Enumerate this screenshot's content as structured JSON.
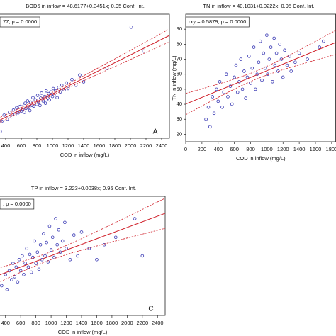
{
  "chart_data": [
    {
      "type": "scatter",
      "title": "BOD5 in inflow = 48.6177+0.3451x; 0.95 Conf. Int.",
      "annotation": "77; p = 0.0000",
      "panel_label": "A",
      "xlabel": "COD in inflow (mg/L)",
      "fit": {
        "intercept": 48.6177,
        "slope": 0.3451
      },
      "xlim": [
        300,
        2500
      ],
      "xticks": [
        400,
        600,
        800,
        1000,
        1200,
        1400,
        1600,
        1800,
        2000,
        2200,
        2400
      ],
      "ylim": [
        0,
        1100
      ],
      "color": "#3a3ab4",
      "line_color": "#d0202a",
      "x": [
        330,
        350,
        380,
        420,
        450,
        480,
        500,
        520,
        540,
        560,
        580,
        600,
        610,
        620,
        640,
        650,
        660,
        680,
        700,
        710,
        720,
        740,
        750,
        760,
        780,
        800,
        810,
        820,
        840,
        850,
        860,
        880,
        900,
        910,
        920,
        940,
        950,
        960,
        980,
        1000,
        1010,
        1020,
        1040,
        1060,
        1080,
        1100,
        1120,
        1150,
        1180,
        1200,
        1250,
        1300,
        1350,
        1400,
        1700,
        2010,
        2170
      ],
      "y": [
        60,
        150,
        205,
        170,
        230,
        190,
        250,
        210,
        270,
        225,
        280,
        240,
        300,
        255,
        230,
        310,
        265,
        330,
        270,
        245,
        320,
        290,
        360,
        285,
        340,
        300,
        380,
        315,
        290,
        355,
        400,
        330,
        370,
        310,
        420,
        355,
        395,
        340,
        410,
        370,
        440,
        385,
        420,
        360,
        450,
        410,
        470,
        430,
        490,
        440,
        520,
        470,
        560,
        500,
        620,
        985,
        773
      ]
    },
    {
      "type": "scatter",
      "title": "TN in inflow = 40.1031+0.0222x; 0.95 Conf. Int.",
      "annotation": "rxy = 0.5879; p = 0.0000",
      "xlabel": "COD in inflow (mg/L)",
      "ylabel": "TN in inflow (mg/L)",
      "fit": {
        "intercept": 40.1031,
        "slope": 0.0222
      },
      "xlim": [
        0,
        1850
      ],
      "xticks": [
        0,
        200,
        400,
        600,
        800,
        1000,
        1200,
        1400,
        1600,
        1800
      ],
      "ylim": [
        15,
        100
      ],
      "yticks": [
        20,
        30,
        40,
        50,
        60,
        70,
        80,
        90
      ],
      "color": "#3a3ab4",
      "line_color": "#d0202a",
      "x": [
        250,
        280,
        300,
        330,
        350,
        380,
        400,
        420,
        450,
        470,
        500,
        520,
        550,
        570,
        600,
        620,
        640,
        660,
        680,
        700,
        720,
        740,
        760,
        780,
        800,
        820,
        840,
        860,
        880,
        900,
        920,
        940,
        960,
        980,
        1000,
        1010,
        1030,
        1050,
        1070,
        1090,
        1100,
        1120,
        1140,
        1160,
        1180,
        1200,
        1220,
        1250,
        1280,
        1300,
        1350,
        1400,
        1500,
        1650,
        1700
      ],
      "y": [
        30,
        38,
        25,
        45,
        34,
        50,
        42,
        55,
        38,
        48,
        60,
        45,
        52,
        40,
        58,
        66,
        48,
        55,
        70,
        50,
        62,
        44,
        58,
        72,
        54,
        64,
        78,
        50,
        60,
        68,
        82,
        56,
        74,
        64,
        86,
        60,
        70,
        78,
        55,
        84,
        66,
        74,
        62,
        80,
        70,
        58,
        76,
        66,
        72,
        62,
        68,
        74,
        70,
        78,
        82
      ]
    },
    {
      "type": "scatter",
      "title": "TP in inflow = 3.223+0.0038x; 0.95 Conf. Int.",
      "annotation": "; p = 0.0000",
      "panel_label": "C",
      "xlabel": "COD in inflow (mg/L)",
      "fit": {
        "intercept": 3.223,
        "slope": 0.0038
      },
      "xlim": [
        300,
        2500
      ],
      "xticks": [
        400,
        600,
        800,
        1000,
        1200,
        1400,
        1600,
        1800,
        2000,
        2200,
        2400
      ],
      "ylim": [
        -1,
        15
      ],
      "color": "#3a3ab4",
      "line_color": "#d0202a",
      "x": [
        350,
        400,
        420,
        450,
        480,
        500,
        520,
        540,
        560,
        580,
        600,
        620,
        640,
        660,
        680,
        700,
        720,
        740,
        760,
        780,
        800,
        820,
        840,
        860,
        880,
        900,
        920,
        940,
        960,
        980,
        1000,
        1020,
        1040,
        1060,
        1080,
        1100,
        1120,
        1150,
        1180,
        1200,
        1250,
        1300,
        1350,
        1400,
        1500,
        1600,
        1700,
        1850,
        2100,
        2200
      ],
      "y": [
        3,
        4.5,
        2.5,
        5,
        3.8,
        6,
        4.2,
        5.5,
        3.5,
        6.5,
        5,
        7,
        4.5,
        6,
        8,
        5.5,
        7.2,
        4.8,
        6.8,
        9,
        6,
        7.5,
        5.2,
        8.5,
        6.5,
        10,
        7,
        8.8,
        6.2,
        11,
        7.8,
        9.5,
        6.8,
        12,
        8.5,
        10.5,
        7.5,
        9,
        11.5,
        8,
        6.5,
        9.8,
        7,
        10.2,
        8,
        6.5,
        8.5,
        9.5,
        12,
        7
      ]
    }
  ]
}
